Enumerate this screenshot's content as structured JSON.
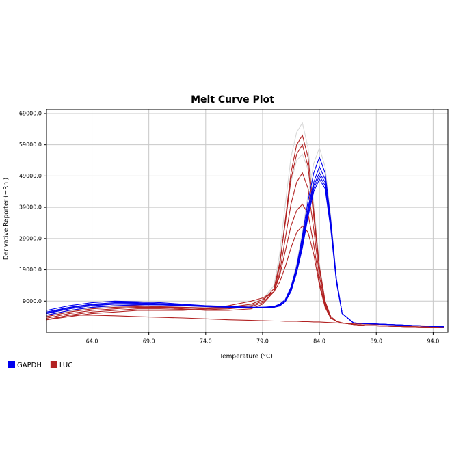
{
  "chart_data": {
    "type": "line",
    "title": "Melt Curve Plot",
    "x_label": "Temperature (°C)",
    "y_label": "Derivative Reporter (−Rn')",
    "xlim": [
      60,
      95.3
    ],
    "ylim": [
      -1000,
      70300
    ],
    "grid": true,
    "xticks": [
      {
        "value": 64,
        "label": "64.0"
      },
      {
        "value": 69,
        "label": "69.0"
      },
      {
        "value": 74,
        "label": "74.0"
      },
      {
        "value": 79,
        "label": "79.0"
      },
      {
        "value": 84,
        "label": "84.0"
      },
      {
        "value": 89,
        "label": "89.0"
      },
      {
        "value": 94,
        "label": "94.0"
      }
    ],
    "yticks": [
      {
        "value": 9000,
        "label": "9000.0"
      },
      {
        "value": 19000,
        "label": "19000.0"
      },
      {
        "value": 29000,
        "label": "29000.0"
      },
      {
        "value": 39000,
        "label": "39000.0"
      },
      {
        "value": 49000,
        "label": "49000.0"
      },
      {
        "value": 59000,
        "label": "59000.0"
      },
      {
        "value": 69000,
        "label": "69000.0"
      }
    ],
    "x": [
      60,
      62,
      64,
      66,
      68,
      70,
      72,
      74,
      76,
      78,
      79,
      80,
      80.5,
      81,
      81.5,
      82,
      82.5,
      83,
      83.5,
      84,
      84.5,
      85,
      85.5,
      86,
      87,
      88,
      90,
      92,
      95
    ],
    "series": [
      {
        "color": "#d8d8d8",
        "values": [
          [
            4000,
            5500,
            6500,
            7000,
            7200,
            7000,
            6800,
            6500,
            6600,
            7500,
            9000,
            14000,
            24000,
            40000,
            55000,
            63000,
            66000,
            58000,
            40000,
            21000,
            9000,
            4000,
            2500,
            2000,
            1500,
            1200,
            1000,
            800,
            600
          ],
          [
            4200,
            5800,
            6800,
            7300,
            7400,
            7200,
            7000,
            6800,
            7000,
            7800,
            9500,
            14000,
            22000,
            35000,
            47000,
            54000,
            56000,
            51000,
            37000,
            20000,
            9000,
            4000,
            2500,
            2000,
            1500,
            1200,
            1000,
            800,
            600
          ],
          [
            5000,
            6500,
            7500,
            8000,
            8000,
            7800,
            7500,
            7200,
            7000,
            6800,
            6800,
            7000,
            7500,
            9000,
            13500,
            21000,
            31000,
            43000,
            53000,
            58000,
            52000,
            36000,
            16000,
            5000,
            2000,
            1800,
            1500,
            1200,
            800
          ]
        ]
      },
      {
        "name": "LUC",
        "color": "#b22222",
        "values": [
          [
            3500,
            5000,
            6000,
            6500,
            7000,
            7000,
            6500,
            6000,
            6000,
            6500,
            8000,
            12000,
            20000,
            35000,
            50000,
            59000,
            62000,
            55000,
            38000,
            20000,
            9000,
            4000,
            2500,
            2000,
            1500,
            1200,
            1000,
            800,
            600
          ],
          [
            4000,
            5500,
            6500,
            7000,
            7200,
            7000,
            6800,
            6500,
            6800,
            7500,
            9000,
            13000,
            21000,
            34000,
            48000,
            56000,
            59000,
            52000,
            36000,
            19000,
            8500,
            4000,
            2500,
            2000,
            1500,
            1200,
            1000,
            800,
            600
          ],
          [
            3000,
            4500,
            5500,
            6000,
            6500,
            6500,
            6300,
            6200,
            6500,
            7200,
            8500,
            12000,
            18000,
            29000,
            40000,
            47000,
            50000,
            45000,
            32000,
            17000,
            8000,
            4000,
            2500,
            2000,
            1500,
            1200,
            1000,
            800,
            600
          ],
          [
            4500,
            6000,
            7000,
            7500,
            7500,
            7200,
            7000,
            6800,
            7000,
            8000,
            9500,
            12000,
            17000,
            25000,
            33000,
            38000,
            40000,
            37000,
            27000,
            15000,
            7500,
            3500,
            2500,
            2000,
            1500,
            1200,
            1000,
            800,
            600
          ],
          [
            3000,
            4000,
            5000,
            5500,
            6000,
            6000,
            6000,
            6500,
            7500,
            9000,
            10000,
            12000,
            15000,
            20000,
            26000,
            31000,
            33000,
            31000,
            24000,
            14000,
            7000,
            3500,
            2500,
            2000,
            1500,
            1200,
            1000,
            800,
            600
          ],
          [
            3000,
            4500,
            4500,
            4300,
            4000,
            3800,
            3600,
            3300,
            3000,
            2800,
            2700,
            2600,
            2600,
            2500,
            2500,
            2500,
            2400,
            2400,
            2300,
            2300,
            2200,
            2100,
            2000,
            1900,
            1800,
            1600,
            1400,
            1200,
            900
          ]
        ]
      },
      {
        "name": "GAPDH",
        "color": "#0000ee",
        "values": [
          [
            5000,
            6500,
            7500,
            8000,
            8000,
            7800,
            7500,
            7200,
            7000,
            6800,
            6800,
            7000,
            7500,
            9000,
            13000,
            20000,
            30000,
            41000,
            50000,
            55000,
            50000,
            35000,
            16000,
            5000,
            2000,
            1800,
            1500,
            1200,
            800
          ],
          [
            5500,
            7000,
            8000,
            8500,
            8500,
            8200,
            7800,
            7500,
            7200,
            7000,
            7000,
            7200,
            7800,
            9500,
            13500,
            20000,
            29000,
            39000,
            47000,
            52000,
            48000,
            34000,
            16000,
            5000,
            2000,
            1800,
            1500,
            1200,
            800
          ],
          [
            6000,
            7500,
            8500,
            9000,
            8800,
            8500,
            8000,
            7500,
            7300,
            7000,
            7000,
            7300,
            8000,
            9500,
            13000,
            19000,
            28000,
            38000,
            46000,
            50000,
            47000,
            33000,
            15000,
            5000,
            2000,
            1800,
            1500,
            1200,
            800
          ],
          [
            4500,
            6000,
            7000,
            7500,
            7800,
            7800,
            7600,
            7400,
            7200,
            7000,
            7000,
            7100,
            7600,
            9000,
            12500,
            18500,
            27000,
            37000,
            45000,
            49000,
            46000,
            33000,
            15500,
            5000,
            2000,
            1800,
            1500,
            1200,
            800
          ],
          [
            5200,
            6800,
            7800,
            8200,
            8300,
            8000,
            7700,
            7400,
            7100,
            6900,
            6900,
            7000,
            7400,
            8800,
            12000,
            18000,
            26000,
            36000,
            44000,
            48000,
            45000,
            32000,
            15000,
            5000,
            2000,
            1800,
            1500,
            1200,
            800
          ]
        ]
      }
    ],
    "legend_order": [
      2,
      1
    ]
  }
}
